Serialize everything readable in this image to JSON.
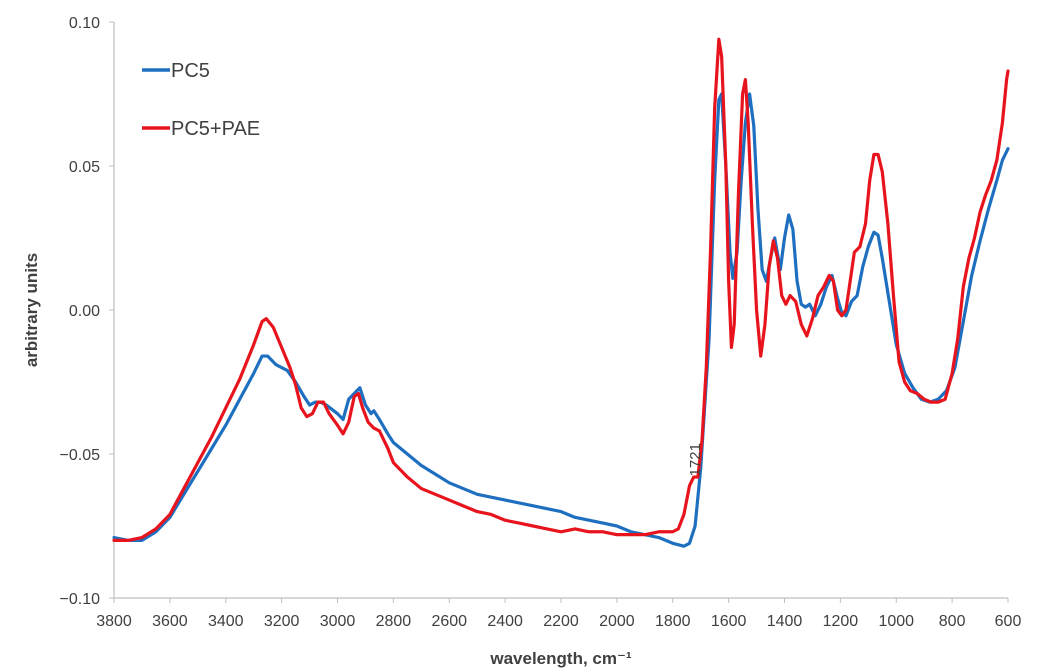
{
  "chart_data": {
    "type": "line",
    "xlabel": "wavelength, cm⁻¹",
    "ylabel": "arbitrary units",
    "xlim": [
      3800,
      600
    ],
    "ylim": [
      -0.1,
      0.1
    ],
    "x_reversed": true,
    "xticks": [
      3800,
      3600,
      3400,
      3200,
      3000,
      2800,
      2600,
      2400,
      2200,
      2000,
      1800,
      1600,
      1400,
      1200,
      1000,
      800,
      600
    ],
    "xtick_labels": [
      "3800",
      "3600",
      "3400",
      "3200",
      "3000",
      "2800",
      "2600",
      "2400",
      "2200",
      "2000",
      "1800",
      "1600",
      "1400",
      "1200",
      "1000",
      "800",
      "600"
    ],
    "yticks": [
      -0.1,
      -0.05,
      0.0,
      0.05,
      0.1
    ],
    "ytick_labels": [
      "−0.10",
      "−0.05",
      "0.00",
      "0.05",
      "0.10"
    ],
    "grid": false,
    "legend_position": "top-left",
    "annotations": [
      {
        "text": "1721",
        "x": 1721,
        "y": -0.052
      }
    ],
    "series": [
      {
        "name": "PC5",
        "color": "#1f6fc0",
        "points": [
          [
            3800,
            -0.079
          ],
          [
            3750,
            -0.08
          ],
          [
            3700,
            -0.08
          ],
          [
            3650,
            -0.077
          ],
          [
            3600,
            -0.072
          ],
          [
            3550,
            -0.064
          ],
          [
            3500,
            -0.056
          ],
          [
            3450,
            -0.048
          ],
          [
            3400,
            -0.04
          ],
          [
            3350,
            -0.031
          ],
          [
            3300,
            -0.022
          ],
          [
            3270,
            -0.016
          ],
          [
            3250,
            -0.016
          ],
          [
            3220,
            -0.019
          ],
          [
            3180,
            -0.021
          ],
          [
            3150,
            -0.025
          ],
          [
            3120,
            -0.03
          ],
          [
            3100,
            -0.033
          ],
          [
            3080,
            -0.032
          ],
          [
            3060,
            -0.032
          ],
          [
            3040,
            -0.033
          ],
          [
            3000,
            -0.036
          ],
          [
            2980,
            -0.038
          ],
          [
            2960,
            -0.031
          ],
          [
            2940,
            -0.029
          ],
          [
            2920,
            -0.027
          ],
          [
            2900,
            -0.033
          ],
          [
            2880,
            -0.036
          ],
          [
            2870,
            -0.035
          ],
          [
            2850,
            -0.038
          ],
          [
            2820,
            -0.043
          ],
          [
            2800,
            -0.046
          ],
          [
            2750,
            -0.05
          ],
          [
            2700,
            -0.054
          ],
          [
            2650,
            -0.057
          ],
          [
            2600,
            -0.06
          ],
          [
            2550,
            -0.062
          ],
          [
            2500,
            -0.064
          ],
          [
            2450,
            -0.065
          ],
          [
            2400,
            -0.066
          ],
          [
            2350,
            -0.067
          ],
          [
            2300,
            -0.068
          ],
          [
            2250,
            -0.069
          ],
          [
            2200,
            -0.07
          ],
          [
            2150,
            -0.072
          ],
          [
            2100,
            -0.073
          ],
          [
            2050,
            -0.074
          ],
          [
            2000,
            -0.075
          ],
          [
            1950,
            -0.077
          ],
          [
            1900,
            -0.078
          ],
          [
            1850,
            -0.079
          ],
          [
            1800,
            -0.081
          ],
          [
            1760,
            -0.082
          ],
          [
            1740,
            -0.081
          ],
          [
            1720,
            -0.075
          ],
          [
            1700,
            -0.055
          ],
          [
            1690,
            -0.04
          ],
          [
            1670,
            -0.01
          ],
          [
            1650,
            0.045
          ],
          [
            1635,
            0.073
          ],
          [
            1625,
            0.075
          ],
          [
            1610,
            0.05
          ],
          [
            1595,
            0.02
          ],
          [
            1585,
            0.011
          ],
          [
            1570,
            0.02
          ],
          [
            1555,
            0.045
          ],
          [
            1540,
            0.065
          ],
          [
            1525,
            0.075
          ],
          [
            1510,
            0.064
          ],
          [
            1495,
            0.035
          ],
          [
            1480,
            0.014
          ],
          [
            1465,
            0.01
          ],
          [
            1450,
            0.018
          ],
          [
            1435,
            0.025
          ],
          [
            1415,
            0.014
          ],
          [
            1400,
            0.025
          ],
          [
            1385,
            0.033
          ],
          [
            1370,
            0.028
          ],
          [
            1355,
            0.01
          ],
          [
            1340,
            0.002
          ],
          [
            1325,
            0.001
          ],
          [
            1310,
            0.002
          ],
          [
            1290,
            -0.002
          ],
          [
            1270,
            0.002
          ],
          [
            1250,
            0.008
          ],
          [
            1230,
            0.012
          ],
          [
            1210,
            0.004
          ],
          [
            1195,
            -0.001
          ],
          [
            1180,
            -0.002
          ],
          [
            1160,
            0.003
          ],
          [
            1140,
            0.005
          ],
          [
            1120,
            0.015
          ],
          [
            1100,
            0.022
          ],
          [
            1080,
            0.027
          ],
          [
            1065,
            0.026
          ],
          [
            1050,
            0.018
          ],
          [
            1030,
            0.006
          ],
          [
            1000,
            -0.012
          ],
          [
            970,
            -0.022
          ],
          [
            940,
            -0.027
          ],
          [
            910,
            -0.031
          ],
          [
            880,
            -0.032
          ],
          [
            850,
            -0.031
          ],
          [
            820,
            -0.028
          ],
          [
            790,
            -0.02
          ],
          [
            760,
            -0.004
          ],
          [
            730,
            0.012
          ],
          [
            700,
            0.024
          ],
          [
            670,
            0.035
          ],
          [
            640,
            0.045
          ],
          [
            620,
            0.052
          ],
          [
            600,
            0.056
          ]
        ]
      },
      {
        "name": "PC5+PAE",
        "color": "#e8141d",
        "points": [
          [
            3800,
            -0.08
          ],
          [
            3750,
            -0.08
          ],
          [
            3700,
            -0.079
          ],
          [
            3650,
            -0.076
          ],
          [
            3600,
            -0.071
          ],
          [
            3550,
            -0.062
          ],
          [
            3500,
            -0.053
          ],
          [
            3450,
            -0.044
          ],
          [
            3400,
            -0.034
          ],
          [
            3350,
            -0.024
          ],
          [
            3300,
            -0.012
          ],
          [
            3270,
            -0.004
          ],
          [
            3255,
            -0.003
          ],
          [
            3230,
            -0.006
          ],
          [
            3200,
            -0.013
          ],
          [
            3170,
            -0.02
          ],
          [
            3150,
            -0.026
          ],
          [
            3130,
            -0.034
          ],
          [
            3110,
            -0.037
          ],
          [
            3090,
            -0.036
          ],
          [
            3070,
            -0.032
          ],
          [
            3050,
            -0.032
          ],
          [
            3030,
            -0.036
          ],
          [
            3000,
            -0.04
          ],
          [
            2980,
            -0.043
          ],
          [
            2960,
            -0.039
          ],
          [
            2940,
            -0.03
          ],
          [
            2925,
            -0.029
          ],
          [
            2910,
            -0.034
          ],
          [
            2890,
            -0.039
          ],
          [
            2870,
            -0.041
          ],
          [
            2850,
            -0.042
          ],
          [
            2820,
            -0.048
          ],
          [
            2800,
            -0.053
          ],
          [
            2750,
            -0.058
          ],
          [
            2700,
            -0.062
          ],
          [
            2650,
            -0.064
          ],
          [
            2600,
            -0.066
          ],
          [
            2550,
            -0.068
          ],
          [
            2500,
            -0.07
          ],
          [
            2450,
            -0.071
          ],
          [
            2400,
            -0.073
          ],
          [
            2350,
            -0.074
          ],
          [
            2300,
            -0.075
          ],
          [
            2250,
            -0.076
          ],
          [
            2200,
            -0.077
          ],
          [
            2150,
            -0.076
          ],
          [
            2100,
            -0.077
          ],
          [
            2050,
            -0.077
          ],
          [
            2000,
            -0.078
          ],
          [
            1950,
            -0.078
          ],
          [
            1900,
            -0.078
          ],
          [
            1850,
            -0.077
          ],
          [
            1800,
            -0.077
          ],
          [
            1780,
            -0.076
          ],
          [
            1760,
            -0.071
          ],
          [
            1740,
            -0.061
          ],
          [
            1725,
            -0.058
          ],
          [
            1710,
            -0.058
          ],
          [
            1695,
            -0.045
          ],
          [
            1680,
            -0.02
          ],
          [
            1665,
            0.02
          ],
          [
            1650,
            0.07
          ],
          [
            1635,
            0.094
          ],
          [
            1625,
            0.088
          ],
          [
            1610,
            0.05
          ],
          [
            1600,
            0.01
          ],
          [
            1590,
            -0.013
          ],
          [
            1580,
            -0.005
          ],
          [
            1565,
            0.04
          ],
          [
            1550,
            0.075
          ],
          [
            1540,
            0.08
          ],
          [
            1530,
            0.065
          ],
          [
            1515,
            0.03
          ],
          [
            1500,
            0.0
          ],
          [
            1485,
            -0.016
          ],
          [
            1470,
            -0.005
          ],
          [
            1455,
            0.015
          ],
          [
            1440,
            0.024
          ],
          [
            1425,
            0.018
          ],
          [
            1410,
            0.005
          ],
          [
            1395,
            0.002
          ],
          [
            1380,
            0.005
          ],
          [
            1360,
            0.003
          ],
          [
            1340,
            -0.005
          ],
          [
            1320,
            -0.009
          ],
          [
            1300,
            -0.003
          ],
          [
            1280,
            0.005
          ],
          [
            1260,
            0.008
          ],
          [
            1240,
            0.012
          ],
          [
            1225,
            0.01
          ],
          [
            1210,
            0.0
          ],
          [
            1195,
            -0.002
          ],
          [
            1180,
            0.0
          ],
          [
            1165,
            0.01
          ],
          [
            1150,
            0.02
          ],
          [
            1130,
            0.022
          ],
          [
            1110,
            0.03
          ],
          [
            1095,
            0.045
          ],
          [
            1080,
            0.054
          ],
          [
            1065,
            0.054
          ],
          [
            1050,
            0.048
          ],
          [
            1030,
            0.03
          ],
          [
            1010,
            0.005
          ],
          [
            990,
            -0.018
          ],
          [
            970,
            -0.025
          ],
          [
            950,
            -0.028
          ],
          [
            925,
            -0.029
          ],
          [
            900,
            -0.031
          ],
          [
            875,
            -0.032
          ],
          [
            850,
            -0.032
          ],
          [
            825,
            -0.031
          ],
          [
            800,
            -0.022
          ],
          [
            780,
            -0.01
          ],
          [
            760,
            0.008
          ],
          [
            740,
            0.018
          ],
          [
            720,
            0.025
          ],
          [
            700,
            0.034
          ],
          [
            680,
            0.04
          ],
          [
            660,
            0.045
          ],
          [
            640,
            0.052
          ],
          [
            620,
            0.065
          ],
          [
            605,
            0.08
          ],
          [
            600,
            0.083
          ]
        ]
      }
    ]
  }
}
